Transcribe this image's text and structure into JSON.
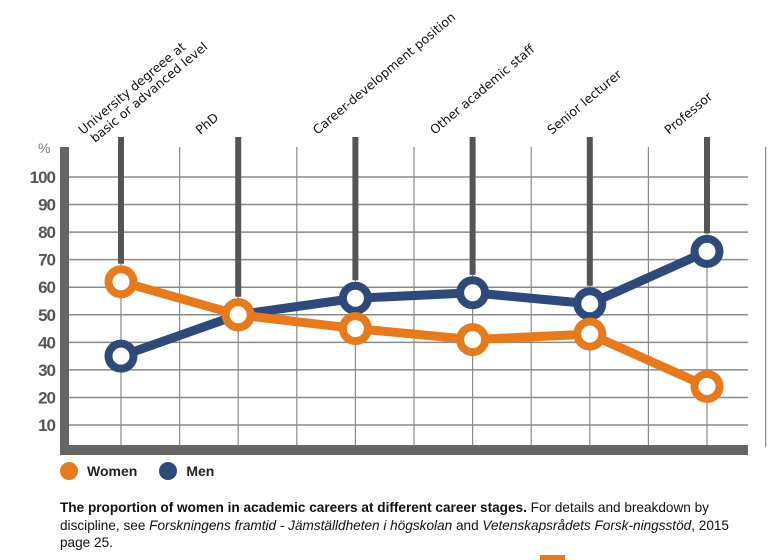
{
  "chart_data": {
    "type": "line",
    "categories": [
      "University degreee at basic or advanced level",
      "PhD",
      "Career-development position",
      "Other academic staff",
      "Senior lecturer",
      "Professor"
    ],
    "category_label_lines": [
      [
        "University degreee at",
        "basic or advanced level"
      ],
      [
        "PhD"
      ],
      [
        "Career-development position"
      ],
      [
        "Other academic staff"
      ],
      [
        "Senior lecturer"
      ],
      [
        "Professor"
      ]
    ],
    "series": [
      {
        "name": "Women",
        "color": "#E87A1E",
        "values": [
          62,
          50,
          45,
          41,
          43,
          24
        ]
      },
      {
        "name": "Men",
        "color": "#2E4A7A",
        "values": [
          35,
          50,
          56,
          58,
          54,
          73
        ]
      }
    ],
    "ylabel": "%",
    "ylim": [
      0,
      100
    ],
    "yticks": [
      10,
      20,
      30,
      40,
      50,
      60,
      70,
      80,
      90,
      100
    ],
    "grid": true,
    "legend_position": "bottom-left",
    "axis_color": "#666666",
    "grid_color": "#8a8a8a"
  },
  "caption": {
    "bold": "The proportion of women in academic careers at different career stages.",
    "text1": " For details and breakdown by discipline, see ",
    "italic1": "Forskningens framtid - Jämställdheten i högskolan",
    "text2": " and ",
    "italic2": "Vetenskapsrådets Forsk-ningsstöd",
    "text3": ", 2015 page 25."
  }
}
